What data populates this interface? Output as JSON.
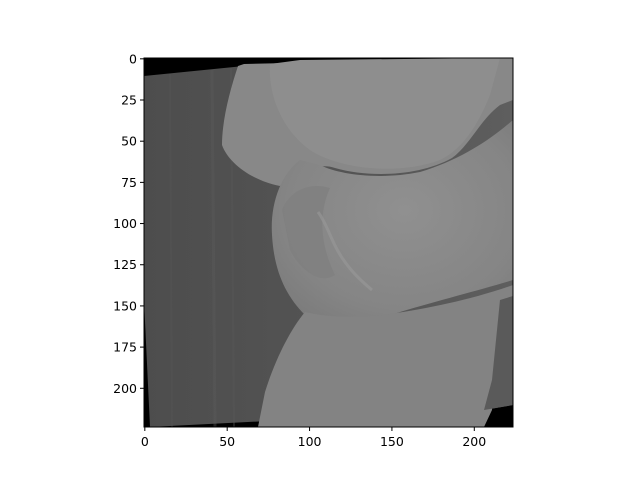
{
  "figure": {
    "subject": "grayscale image",
    "colors": {
      "background": "#ffffff",
      "axes_frame": "#000000",
      "image_border": "#000000",
      "left_region": "#525252",
      "object_light": "#8f8f8f",
      "object_mid": "#7d7d7d",
      "object_dark_edge": "#6a6a6a"
    }
  },
  "axes": {
    "x": {
      "ticks": [
        {
          "value": 0,
          "label": "0"
        },
        {
          "value": 50,
          "label": "50"
        },
        {
          "value": 100,
          "label": "100"
        },
        {
          "value": 150,
          "label": "150"
        },
        {
          "value": 200,
          "label": "200"
        }
      ],
      "range": [
        -0.5,
        223.5
      ]
    },
    "y": {
      "ticks": [
        {
          "value": 0,
          "label": "0"
        },
        {
          "value": 25,
          "label": "25"
        },
        {
          "value": 50,
          "label": "50"
        },
        {
          "value": 75,
          "label": "75"
        },
        {
          "value": 100,
          "label": "100"
        },
        {
          "value": 125,
          "label": "125"
        },
        {
          "value": 150,
          "label": "150"
        },
        {
          "value": 175,
          "label": "175"
        },
        {
          "value": 200,
          "label": "200"
        }
      ],
      "range": [
        223.5,
        -0.5
      ]
    }
  }
}
